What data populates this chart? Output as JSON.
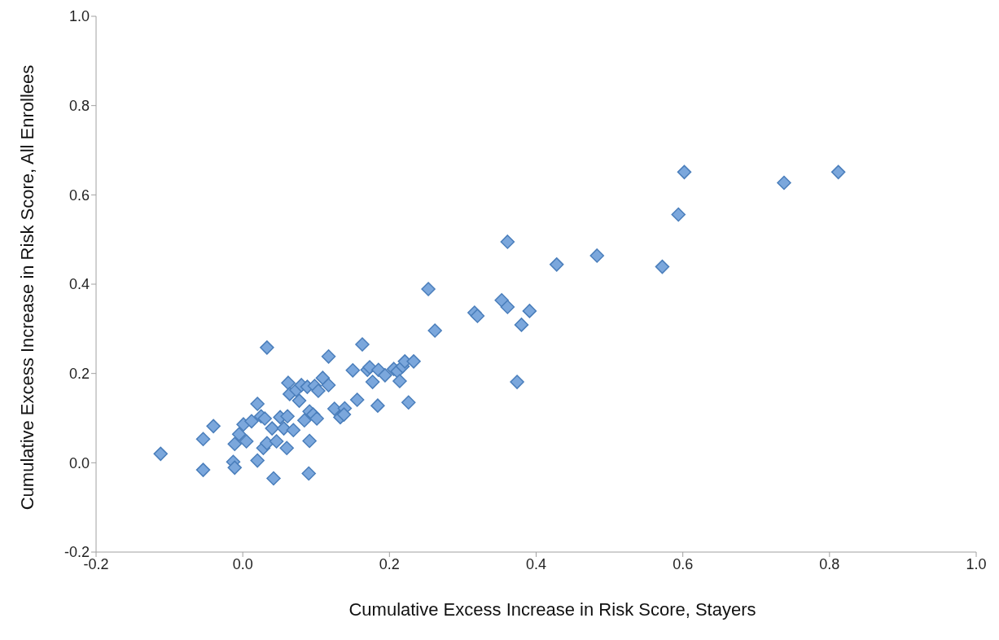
{
  "chart_data": {
    "type": "scatter",
    "xlabel": "Cumulative Excess Increase in Risk Score, Stayers",
    "ylabel": "Cumulative Excess Increase in Risk Score, All Enrollees",
    "xlim": [
      -0.2,
      1.0
    ],
    "xticks": [
      {
        "value": -0.2,
        "label": "-0.2"
      },
      {
        "value": 0,
        "label": "0.0"
      },
      {
        "value": 0.2,
        "label": "0.2"
      },
      {
        "value": 0.4,
        "label": "0.4"
      },
      {
        "value": 0.6,
        "label": "0.6"
      },
      {
        "value": 0.8,
        "label": "0.8"
      },
      {
        "value": 1.0,
        "label": "1.0"
      }
    ],
    "ylim": [
      -0.2,
      1.0
    ],
    "yticks": [
      {
        "value": -0.2,
        "label": "-0.2"
      },
      {
        "value": 0,
        "label": "0.0"
      },
      {
        "value": 0.2,
        "label": "0.2"
      },
      {
        "value": 0.4,
        "label": "0.4"
      },
      {
        "value": 0.6,
        "label": "0.6"
      },
      {
        "value": 0.8,
        "label": "0.8"
      },
      {
        "value": 1.0,
        "label": "1.0"
      }
    ],
    "grid": false,
    "legend": false,
    "marker": "diamond",
    "series": [
      {
        "color": "#7ba7dc",
        "x": [
          -0.112,
          -0.054,
          -0.04,
          -0.054,
          -0.013,
          -0.011,
          -0.011,
          -0.005,
          0.001,
          0.005,
          0.012,
          0.02,
          0.02,
          0.025,
          0.03,
          0.033,
          0.028,
          0.033,
          0.042,
          0.04,
          0.046,
          0.051,
          0.056,
          0.06,
          0.061,
          0.062,
          0.064,
          0.069,
          0.073,
          0.077,
          0.08,
          0.084,
          0.088,
          0.09,
          0.091,
          0.091,
          0.096,
          0.098,
          0.101,
          0.103,
          0.109,
          0.117,
          0.117,
          0.125,
          0.133,
          0.139,
          0.138,
          0.15,
          0.156,
          0.163,
          0.17,
          0.173,
          0.177,
          0.184,
          0.185,
          0.194,
          0.206,
          0.211,
          0.214,
          0.218,
          0.221,
          0.226,
          0.233,
          0.253,
          0.262,
          0.316,
          0.32,
          0.353,
          0.361,
          0.361,
          0.374,
          0.38,
          0.391,
          0.428,
          0.483,
          0.572,
          0.594,
          0.602,
          0.738,
          0.812
        ],
        "values": [
          0.02,
          0.053,
          0.082,
          -0.016,
          0.002,
          -0.011,
          0.042,
          0.064,
          0.086,
          0.048,
          0.093,
          0.132,
          0.005,
          0.104,
          0.099,
          0.258,
          0.033,
          0.044,
          -0.035,
          0.077,
          0.048,
          0.102,
          0.077,
          0.033,
          0.104,
          0.179,
          0.154,
          0.073,
          0.163,
          0.139,
          0.174,
          0.095,
          0.17,
          -0.024,
          0.049,
          0.115,
          0.108,
          0.172,
          0.099,
          0.161,
          0.19,
          0.238,
          0.174,
          0.121,
          0.102,
          0.122,
          0.108,
          0.207,
          0.141,
          0.265,
          0.208,
          0.214,
          0.181,
          0.128,
          0.208,
          0.196,
          0.21,
          0.205,
          0.183,
          0.216,
          0.227,
          0.135,
          0.227,
          0.389,
          0.296,
          0.336,
          0.329,
          0.364,
          0.495,
          0.349,
          0.181,
          0.309,
          0.34,
          0.444,
          0.464,
          0.439,
          0.556,
          0.651,
          0.627,
          0.651
        ]
      }
    ]
  }
}
